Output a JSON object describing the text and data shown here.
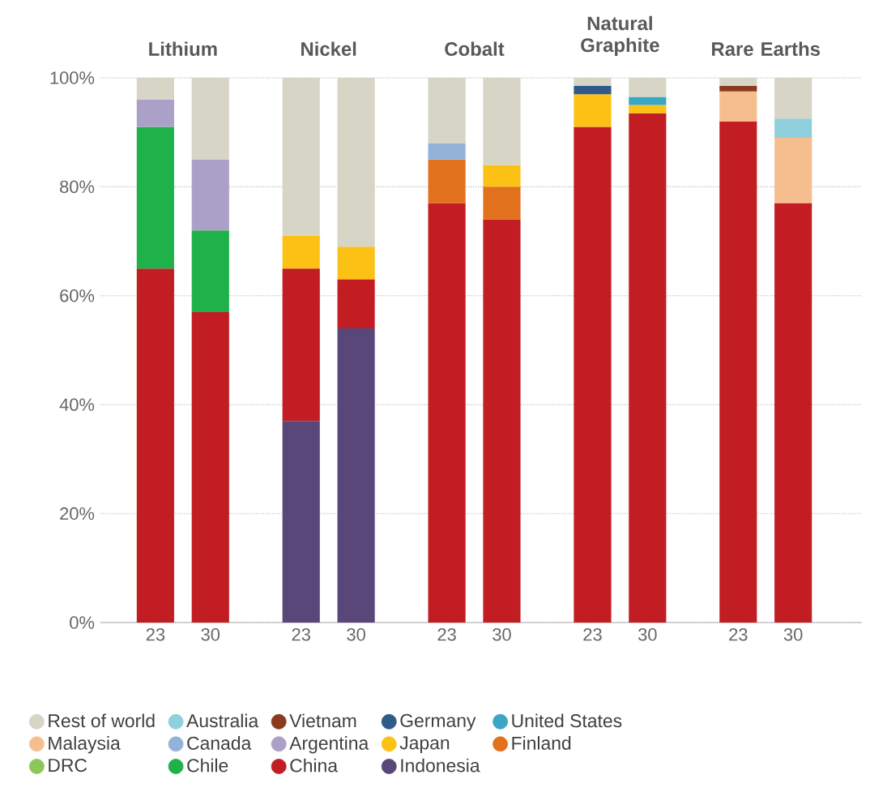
{
  "chart_data": {
    "type": "bar",
    "stacked": true,
    "categories": [
      "23",
      "30",
      "23",
      "30",
      "23",
      "30",
      "23",
      "30",
      "23",
      "30"
    ],
    "annotations": [
      "Lithium",
      "Nickel",
      "Cobalt",
      "Natural Graphite",
      "Rare Earths"
    ],
    "ylim": [
      0,
      100
    ],
    "yticks": [
      {
        "value": 0,
        "label": "0%"
      },
      {
        "value": 20,
        "label": "20%"
      },
      {
        "value": 40,
        "label": "40%"
      },
      {
        "value": 60,
        "label": "60%"
      },
      {
        "value": 80,
        "label": "80%"
      },
      {
        "value": 100,
        "label": "100%"
      }
    ],
    "grid": "y",
    "legend": "bottom",
    "series": [
      {
        "name": "Indonesia",
        "color": "#5a477a",
        "values": [
          null,
          null,
          37,
          54,
          null,
          null,
          null,
          null,
          null,
          null
        ]
      },
      {
        "name": "China",
        "color": "#c21d23",
        "values": [
          65,
          57,
          28,
          9,
          77,
          74,
          91,
          93.5,
          92,
          77
        ]
      },
      {
        "name": "Chile",
        "color": "#1fb24a",
        "values": [
          26,
          15,
          null,
          null,
          null,
          null,
          null,
          null,
          null,
          null
        ]
      },
      {
        "name": "DRC",
        "color": "#8dc65a",
        "values": [
          null,
          null,
          null,
          null,
          null,
          null,
          null,
          null,
          null,
          null
        ]
      },
      {
        "name": "Finland",
        "color": "#e2711d",
        "values": [
          null,
          null,
          null,
          null,
          8,
          6,
          null,
          null,
          null,
          null
        ]
      },
      {
        "name": "Japan",
        "color": "#fbc115",
        "values": [
          null,
          null,
          6,
          6,
          null,
          4,
          6,
          1.5,
          null,
          null
        ]
      },
      {
        "name": "Argentina",
        "color": "#aaa0c8",
        "values": [
          5,
          13,
          null,
          null,
          null,
          null,
          null,
          null,
          null,
          null
        ]
      },
      {
        "name": "Canada",
        "color": "#93b2d9",
        "values": [
          null,
          null,
          null,
          null,
          3,
          null,
          null,
          null,
          null,
          null
        ]
      },
      {
        "name": "Malaysia",
        "color": "#f6be8e",
        "values": [
          null,
          null,
          null,
          null,
          null,
          null,
          null,
          null,
          5.5,
          12
        ]
      },
      {
        "name": "United States",
        "color": "#3aa6c4",
        "values": [
          null,
          null,
          null,
          null,
          null,
          null,
          null,
          1.5,
          null,
          null
        ]
      },
      {
        "name": "Germany",
        "color": "#2f5a8a",
        "values": [
          null,
          null,
          null,
          null,
          null,
          null,
          1.5,
          null,
          null,
          null
        ]
      },
      {
        "name": "Vietnam",
        "color": "#8b3a1e",
        "values": [
          null,
          null,
          null,
          null,
          null,
          null,
          null,
          null,
          1,
          null
        ]
      },
      {
        "name": "Australia",
        "color": "#8fd0dc",
        "values": [
          null,
          null,
          null,
          null,
          null,
          null,
          null,
          null,
          null,
          3.5
        ]
      },
      {
        "name": "Rest of world",
        "color": "#d6d5c6",
        "values": [
          4,
          15,
          29,
          31,
          12,
          16,
          1.5,
          3.5,
          1.5,
          7.5
        ]
      }
    ]
  }
}
